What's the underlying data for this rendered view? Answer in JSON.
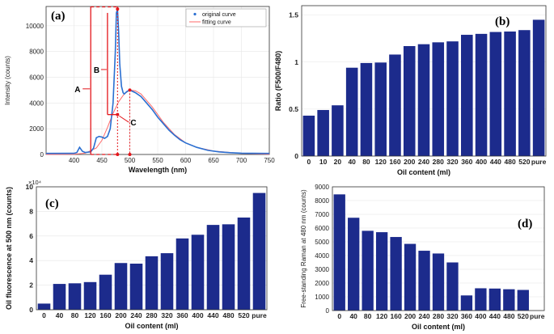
{
  "colors": {
    "bar": "#1c2b8c",
    "curve": "#2a6fd1",
    "fit": "#ff6a6a",
    "annot": "#e3151a",
    "grid": "#e6e6e6"
  },
  "chart_data": [
    {
      "id": "a",
      "panel_label": "(a)",
      "type": "line",
      "xlabel": "Wavelength (nm)",
      "ylabel": "Intensity (counts)",
      "xlim": [
        350,
        750
      ],
      "ylim": [
        0,
        11500
      ],
      "xticks": [
        400,
        450,
        500,
        550,
        600,
        650,
        700,
        750
      ],
      "yticks": [
        0,
        2000,
        4000,
        6000,
        8000,
        10000
      ],
      "legend": [
        "original curve",
        "fitting curve"
      ],
      "annotations": [
        "A",
        "B",
        "C"
      ],
      "series": [
        {
          "name": "original curve",
          "x": [
            350,
            400,
            405,
            410,
            415,
            420,
            430,
            435,
            440,
            445,
            450,
            455,
            460,
            465,
            470,
            474,
            476,
            478,
            480,
            482,
            485,
            488,
            490,
            495,
            500,
            505,
            510,
            520,
            530,
            540,
            550,
            560,
            570,
            580,
            590,
            600,
            620,
            640,
            660,
            680,
            700,
            720,
            740,
            750
          ],
          "y": [
            80,
            90,
            150,
            550,
            250,
            150,
            200,
            500,
            1300,
            1400,
            1350,
            1250,
            1400,
            2000,
            4000,
            8000,
            11000,
            11300,
            9500,
            7000,
            5300,
            4800,
            4700,
            4900,
            5000,
            4900,
            4800,
            4500,
            4000,
            3500,
            2900,
            2400,
            1900,
            1500,
            1150,
            900,
            550,
            320,
            200,
            140,
            100,
            90,
            80,
            80
          ]
        },
        {
          "name": "fitting curve",
          "x": [
            350,
            400,
            420,
            440,
            450,
            460,
            470,
            480,
            490,
            500,
            510,
            520,
            540,
            560,
            580,
            600,
            620,
            650,
            700,
            750
          ],
          "y": [
            0,
            20,
            100,
            500,
            1100,
            2100,
            3200,
            4100,
            4700,
            5000,
            4950,
            4700,
            3700,
            2500,
            1550,
            900,
            550,
            270,
            80,
            20
          ]
        }
      ]
    },
    {
      "id": "b",
      "panel_label": "(b)",
      "type": "bar",
      "xlabel": "Oil content (ml)",
      "ylabel": "Ratio (F500/F480)",
      "ylim": [
        0,
        1.6
      ],
      "yticks": [
        0,
        0.5,
        1,
        1.5
      ],
      "ytick_labels": [
        "0",
        "0.5",
        "1",
        "1.5"
      ],
      "categories": [
        "0",
        "10",
        "20",
        "40",
        "80",
        "120",
        "160",
        "200",
        "240",
        "280",
        "320",
        "360",
        "400",
        "440",
        "480",
        "520",
        "pure"
      ],
      "values": [
        0.43,
        0.49,
        0.54,
        0.94,
        0.99,
        0.995,
        1.08,
        1.17,
        1.19,
        1.21,
        1.22,
        1.29,
        1.3,
        1.32,
        1.325,
        1.34,
        1.45
      ]
    },
    {
      "id": "c",
      "panel_label": "(c)",
      "type": "bar",
      "xlabel": "Oil content (ml)",
      "ylabel": "Oil fluorescence at 500 nm (counts)",
      "multiplier": "×10⁴",
      "ylim": [
        0,
        10
      ],
      "yticks": [
        0,
        2,
        4,
        6,
        8,
        10
      ],
      "ytick_labels": [
        "0",
        "2",
        "4",
        "6",
        "8",
        "10"
      ],
      "categories": [
        "0",
        "40",
        "80",
        "120",
        "160",
        "200",
        "240",
        "280",
        "320",
        "360",
        "400",
        "440",
        "480",
        "520",
        "pure"
      ],
      "values": [
        0.5,
        2.1,
        2.15,
        2.25,
        2.85,
        3.8,
        3.75,
        4.35,
        4.6,
        5.8,
        6.1,
        6.9,
        6.95,
        7.5,
        9.5
      ]
    },
    {
      "id": "d",
      "panel_label": "(d)",
      "type": "bar",
      "xlabel": "Oil content (ml)",
      "ylabel": "Free-standing Raman at 480 nm (counts)",
      "ylim": [
        0,
        9000
      ],
      "yticks": [
        0,
        1000,
        2000,
        3000,
        4000,
        5000,
        6000,
        7000,
        8000,
        9000
      ],
      "ytick_labels": [
        "0",
        "1000",
        "2000",
        "3000",
        "4000",
        "5000",
        "6000",
        "7000",
        "8000",
        "9000"
      ],
      "categories": [
        "0",
        "40",
        "80",
        "120",
        "160",
        "200",
        "240",
        "280",
        "320",
        "360",
        "400",
        "440",
        "480",
        "520",
        "pure"
      ],
      "values": [
        8450,
        6750,
        5800,
        5700,
        5350,
        4850,
        4350,
        4150,
        3500,
        1100,
        1620,
        1600,
        1550,
        1500,
        null
      ]
    }
  ]
}
